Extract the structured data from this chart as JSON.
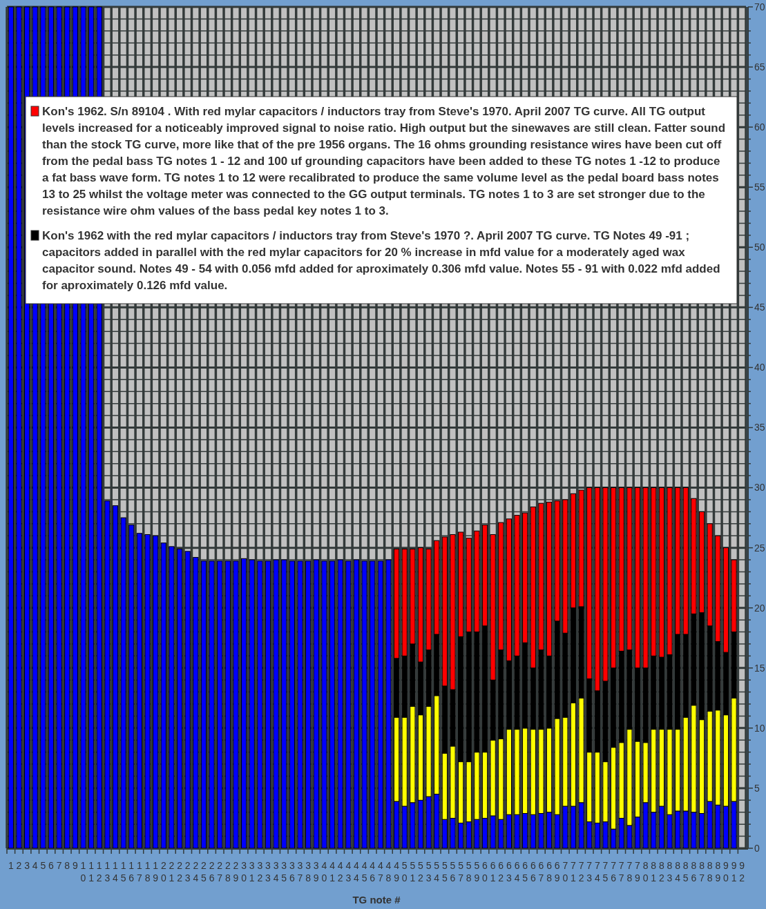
{
  "chart_data": {
    "type": "bar",
    "xlabel": "TG note #",
    "categories": [
      "1",
      "2",
      "3",
      "4",
      "5",
      "6",
      "7",
      "8",
      "9",
      "10",
      "11",
      "12",
      "13",
      "14",
      "15",
      "16",
      "17",
      "18",
      "19",
      "20",
      "21",
      "22",
      "23",
      "24",
      "25",
      "26",
      "27",
      "28",
      "29",
      "30",
      "31",
      "32",
      "33",
      "34",
      "35",
      "36",
      "37",
      "38",
      "39",
      "40",
      "41",
      "42",
      "43",
      "44",
      "45",
      "46",
      "47",
      "48",
      "49",
      "50",
      "51",
      "52",
      "53",
      "54",
      "55",
      "56",
      "57",
      "58",
      "59",
      "60",
      "61",
      "62",
      "63",
      "64",
      "65",
      "66",
      "67",
      "68",
      "69",
      "70",
      "71",
      "72",
      "73",
      "74",
      "75",
      "76",
      "77",
      "78",
      "79",
      "80",
      "81",
      "82",
      "83",
      "84",
      "85",
      "86",
      "87",
      "88",
      "89",
      "90",
      "91",
      "92"
    ],
    "stacked": true,
    "series": [
      {
        "color": "#0000ff",
        "values": [
          70,
          70,
          70,
          70,
          70,
          70,
          70,
          70,
          70,
          70,
          70,
          70,
          28.9,
          28.5,
          27.5,
          26.9,
          26.2,
          26.1,
          26.0,
          25.4,
          25.1,
          24.9,
          24.7,
          24.2,
          23.9,
          23.9,
          23.9,
          23.9,
          23.9,
          24.1,
          24.0,
          23.9,
          23.9,
          24.0,
          24.0,
          23.9,
          23.9,
          23.9,
          24.0,
          23.9,
          23.9,
          24.0,
          23.9,
          24.0,
          23.9,
          23.9,
          23.9,
          24.0,
          3.9,
          3.5,
          3.8,
          4.0,
          4.3,
          4.5,
          2.4,
          2.5,
          2.1,
          2.2,
          2.4,
          2.5,
          2.7,
          2.4,
          2.8,
          2.8,
          2.9,
          2.8,
          2.9,
          3.0,
          2.8,
          3.5,
          3.5,
          3.8,
          2.2,
          2.1,
          2.2,
          1.6,
          2.5,
          1.9,
          2.6,
          3.8,
          3.0,
          3.5,
          2.8,
          3.1,
          3.1,
          3.0,
          2.9,
          3.9,
          3.6,
          3.5,
          3.9,
          null
        ]
      },
      {
        "color": "#ffff00",
        "values": [
          null,
          null,
          null,
          null,
          null,
          null,
          null,
          null,
          null,
          null,
          null,
          null,
          null,
          null,
          null,
          null,
          null,
          null,
          null,
          null,
          null,
          null,
          null,
          null,
          null,
          null,
          null,
          null,
          null,
          null,
          null,
          null,
          null,
          null,
          null,
          null,
          null,
          null,
          null,
          null,
          null,
          null,
          null,
          null,
          null,
          null,
          null,
          null,
          7.0,
          7.4,
          8.0,
          7.1,
          7.5,
          8.2,
          5.5,
          6.0,
          5.1,
          5.0,
          5.6,
          5.5,
          6.3,
          6.7,
          7.1,
          7.1,
          7.1,
          7.1,
          7.0,
          7.0,
          8.0,
          7.4,
          8.6,
          8.7,
          5.8,
          5.9,
          5.0,
          6.8,
          6.3,
          8.0,
          6.3,
          5.0,
          6.9,
          6.4,
          7.1,
          6.8,
          7.8,
          8.9,
          7.8,
          7.5,
          7.9,
          7.6,
          8.6,
          null
        ]
      },
      {
        "name": "Kon's 1962 with the red mylar capacitors / inductors tray from Steve's 1970 ?. April 2007 TG curve. TG Notes 49 -91 ; capacitors added in parallel with the red mylar capacitors for 20 % increase in mfd value for a moderately aged wax capacitor sound. Notes 49 - 54 with 0.056 mfd added for aproximately 0.306 mfd value. Notes 55 - 91 with 0.022 mfd added for aproximately 0.126 mfd value.",
        "color": "#000000",
        "values": [
          null,
          null,
          null,
          null,
          null,
          null,
          null,
          null,
          null,
          null,
          null,
          null,
          null,
          null,
          null,
          null,
          null,
          null,
          null,
          null,
          null,
          null,
          null,
          null,
          null,
          null,
          null,
          null,
          null,
          null,
          null,
          null,
          null,
          null,
          null,
          null,
          null,
          null,
          null,
          null,
          null,
          null,
          null,
          null,
          null,
          null,
          null,
          null,
          4.9,
          5.1,
          5.2,
          4.4,
          4.7,
          5.1,
          5.6,
          4.7,
          10.4,
          10.8,
          10.0,
          10.5,
          5.0,
          7.4,
          5.7,
          6.1,
          7.1,
          5.1,
          6.6,
          6.0,
          8.1,
          7.0,
          7.9,
          7.6,
          6.1,
          5.1,
          6.7,
          6.6,
          7.6,
          6.6,
          6.1,
          6.2,
          6.1,
          6.0,
          6.2,
          7.9,
          6.9,
          7.6,
          8.9,
          7.1,
          5.7,
          5.2,
          5.5,
          null
        ]
      },
      {
        "name": "Kon's 1962. S/n 89104 . With red mylar capacitors / inductors tray from Steve's 1970. April 2007 TG curve. All TG output levels increased for a noticeably improved signal to noise ratio. High output but the sinewaves are still clean. Fatter sound than the stock TG curve, more like that of the pre 1956 organs. The 16 ohms grounding resistance wires have been cut off from the pedal bass TG notes 1 - 12 and 100 uf grounding capacitors have been added to these TG notes 1 -12 to produce a fat bass wave form. TG notes 1 to 12 were recalibrated to produce the same volume level as the pedal board bass notes 13 to 25 whilst the voltage meter was connected to the GG output terminals. TG notes 1 to 3 are set stronger due to the resistance wire ohm values of the bass pedal key notes 1 to 3.",
        "color": "#ff0000",
        "values": [
          null,
          null,
          null,
          null,
          null,
          null,
          null,
          null,
          null,
          null,
          null,
          null,
          null,
          null,
          null,
          null,
          null,
          null,
          null,
          null,
          null,
          null,
          null,
          null,
          null,
          null,
          null,
          null,
          null,
          null,
          null,
          null,
          null,
          null,
          null,
          null,
          null,
          null,
          null,
          null,
          null,
          null,
          null,
          null,
          null,
          null,
          null,
          null,
          9.1,
          8.9,
          7.9,
          9.5,
          8.4,
          7.8,
          12.4,
          12.9,
          8.7,
          7.8,
          8.4,
          8.4,
          12.1,
          10.6,
          11.8,
          11.7,
          10.8,
          13.4,
          12.2,
          12.8,
          10.0,
          11.1,
          9.5,
          9.7,
          15.9,
          16.9,
          16.1,
          15.0,
          13.6,
          13.5,
          15.0,
          15.0,
          14.0,
          14.1,
          13.9,
          12.2,
          12.2,
          9.6,
          8.4,
          8.5,
          8.8,
          8.7,
          6.0,
          null
        ]
      }
    ],
    "ylim": [
      0,
      70
    ],
    "yticks": [
      0,
      {
        "value": 1,
        "label": null
      },
      {
        "value": 2,
        "label": null
      },
      {
        "value": 3,
        "label": null
      },
      {
        "value": 4,
        "label": null
      },
      5,
      {
        "value": 6,
        "label": null
      },
      {
        "value": 7,
        "label": null
      },
      {
        "value": 8,
        "label": null
      },
      {
        "value": 9,
        "label": null
      },
      10,
      {
        "value": 11,
        "label": null
      },
      {
        "value": 12,
        "label": null
      },
      {
        "value": 13,
        "label": null
      },
      {
        "value": 14,
        "label": null
      },
      15,
      {
        "value": 16,
        "label": null
      },
      {
        "value": 17,
        "label": null
      },
      {
        "value": 18,
        "label": null
      },
      {
        "value": 19,
        "label": null
      },
      20,
      {
        "value": 21,
        "label": null
      },
      {
        "value": 22,
        "label": null
      },
      {
        "value": 23,
        "label": null
      },
      {
        "value": 24,
        "label": null
      },
      25,
      {
        "value": 26,
        "label": null
      },
      {
        "value": 27,
        "label": null
      },
      {
        "value": 28,
        "label": null
      },
      {
        "value": 29,
        "label": null
      },
      30,
      {
        "value": 31,
        "label": null
      },
      {
        "value": 32,
        "label": null
      },
      {
        "value": 33,
        "label": null
      },
      {
        "value": 34,
        "label": null
      },
      35,
      {
        "value": 36,
        "label": null
      },
      {
        "value": 37,
        "label": null
      },
      {
        "value": 38,
        "label": null
      },
      {
        "value": 39,
        "label": null
      },
      40,
      {
        "value": 41,
        "label": null
      },
      {
        "value": 42,
        "label": null
      },
      {
        "value": 43,
        "label": null
      },
      {
        "value": 44,
        "label": null
      },
      45,
      {
        "value": 46,
        "label": null
      },
      {
        "value": 47,
        "label": null
      },
      {
        "value": 48,
        "label": null
      },
      {
        "value": 49,
        "label": null
      },
      50,
      {
        "value": 51,
        "label": null
      },
      {
        "value": 52,
        "label": null
      },
      {
        "value": 53,
        "label": null
      },
      {
        "value": 54,
        "label": null
      },
      55,
      {
        "value": 56,
        "label": null
      },
      {
        "value": 57,
        "label": null
      },
      {
        "value": 58,
        "label": null
      },
      {
        "value": 59,
        "label": null
      },
      60,
      {
        "value": 61,
        "label": null
      },
      {
        "value": 62,
        "label": null
      },
      {
        "value": 63,
        "label": null
      },
      {
        "value": 64,
        "label": null
      },
      65,
      {
        "value": 66,
        "label": null
      },
      {
        "value": 67,
        "label": null
      },
      {
        "value": 68,
        "label": null
      },
      {
        "value": 69,
        "label": null
      },
      70
    ],
    "grid": true,
    "legend": "top"
  }
}
